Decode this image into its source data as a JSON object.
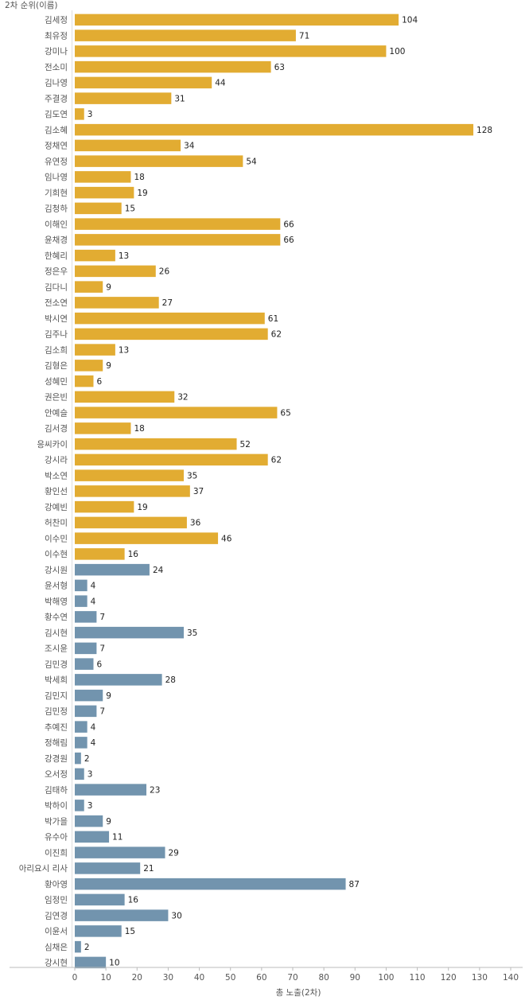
{
  "chart_data": {
    "type": "bar",
    "orientation": "horizontal",
    "row_header": "2차 순위(이름)",
    "xlabel": "총 노출(2차)",
    "xlim": [
      0,
      140
    ],
    "xticks": [
      0,
      10,
      20,
      30,
      40,
      50,
      60,
      70,
      80,
      90,
      100,
      110,
      120,
      130,
      140
    ],
    "colors": {
      "gold": "#E2AC32",
      "steel": "#7294AE",
      "axis": "#BBBBBB",
      "text": "#555555"
    },
    "categories": [
      "김세정",
      "최유정",
      "강미나",
      "전소미",
      "김나영",
      "주결경",
      "김도연",
      "김소혜",
      "정채연",
      "유연정",
      "임나영",
      "기희현",
      "김청하",
      "이해인",
      "윤채경",
      "한혜리",
      "정은우",
      "김다니",
      "전소연",
      "박시연",
      "김주나",
      "김소희",
      "김형은",
      "성혜민",
      "권은빈",
      "안예슬",
      "김서경",
      "응씨카이",
      "강시라",
      "박소연",
      "황인선",
      "강예빈",
      "허찬미",
      "이수민",
      "이수현",
      "강시원",
      "윤서형",
      "박해영",
      "황수연",
      "김시현",
      "조시윤",
      "김민경",
      "박세희",
      "김민지",
      "김민정",
      "추예진",
      "정해림",
      "강경원",
      "오서정",
      "김태하",
      "박하이",
      "박가을",
      "유수아",
      "이진희",
      "아리요시 리사",
      "황아영",
      "임정민",
      "김연경",
      "이윤서",
      "심채은",
      "강시현"
    ],
    "values": [
      104,
      71,
      100,
      63,
      44,
      31,
      3,
      128,
      34,
      54,
      18,
      19,
      15,
      66,
      66,
      13,
      26,
      9,
      27,
      61,
      62,
      13,
      9,
      6,
      32,
      65,
      18,
      52,
      62,
      35,
      37,
      19,
      36,
      46,
      16,
      24,
      4,
      4,
      7,
      35,
      7,
      6,
      28,
      9,
      7,
      4,
      4,
      2,
      3,
      23,
      3,
      9,
      11,
      29,
      21,
      87,
      16,
      30,
      15,
      2,
      10
    ],
    "groups": [
      "gold",
      "gold",
      "gold",
      "gold",
      "gold",
      "gold",
      "gold",
      "gold",
      "gold",
      "gold",
      "gold",
      "gold",
      "gold",
      "gold",
      "gold",
      "gold",
      "gold",
      "gold",
      "gold",
      "gold",
      "gold",
      "gold",
      "gold",
      "gold",
      "gold",
      "gold",
      "gold",
      "gold",
      "gold",
      "gold",
      "gold",
      "gold",
      "gold",
      "gold",
      "gold",
      "steel",
      "steel",
      "steel",
      "steel",
      "steel",
      "steel",
      "steel",
      "steel",
      "steel",
      "steel",
      "steel",
      "steel",
      "steel",
      "steel",
      "steel",
      "steel",
      "steel",
      "steel",
      "steel",
      "steel",
      "steel",
      "steel",
      "steel",
      "steel",
      "steel",
      "steel"
    ]
  }
}
